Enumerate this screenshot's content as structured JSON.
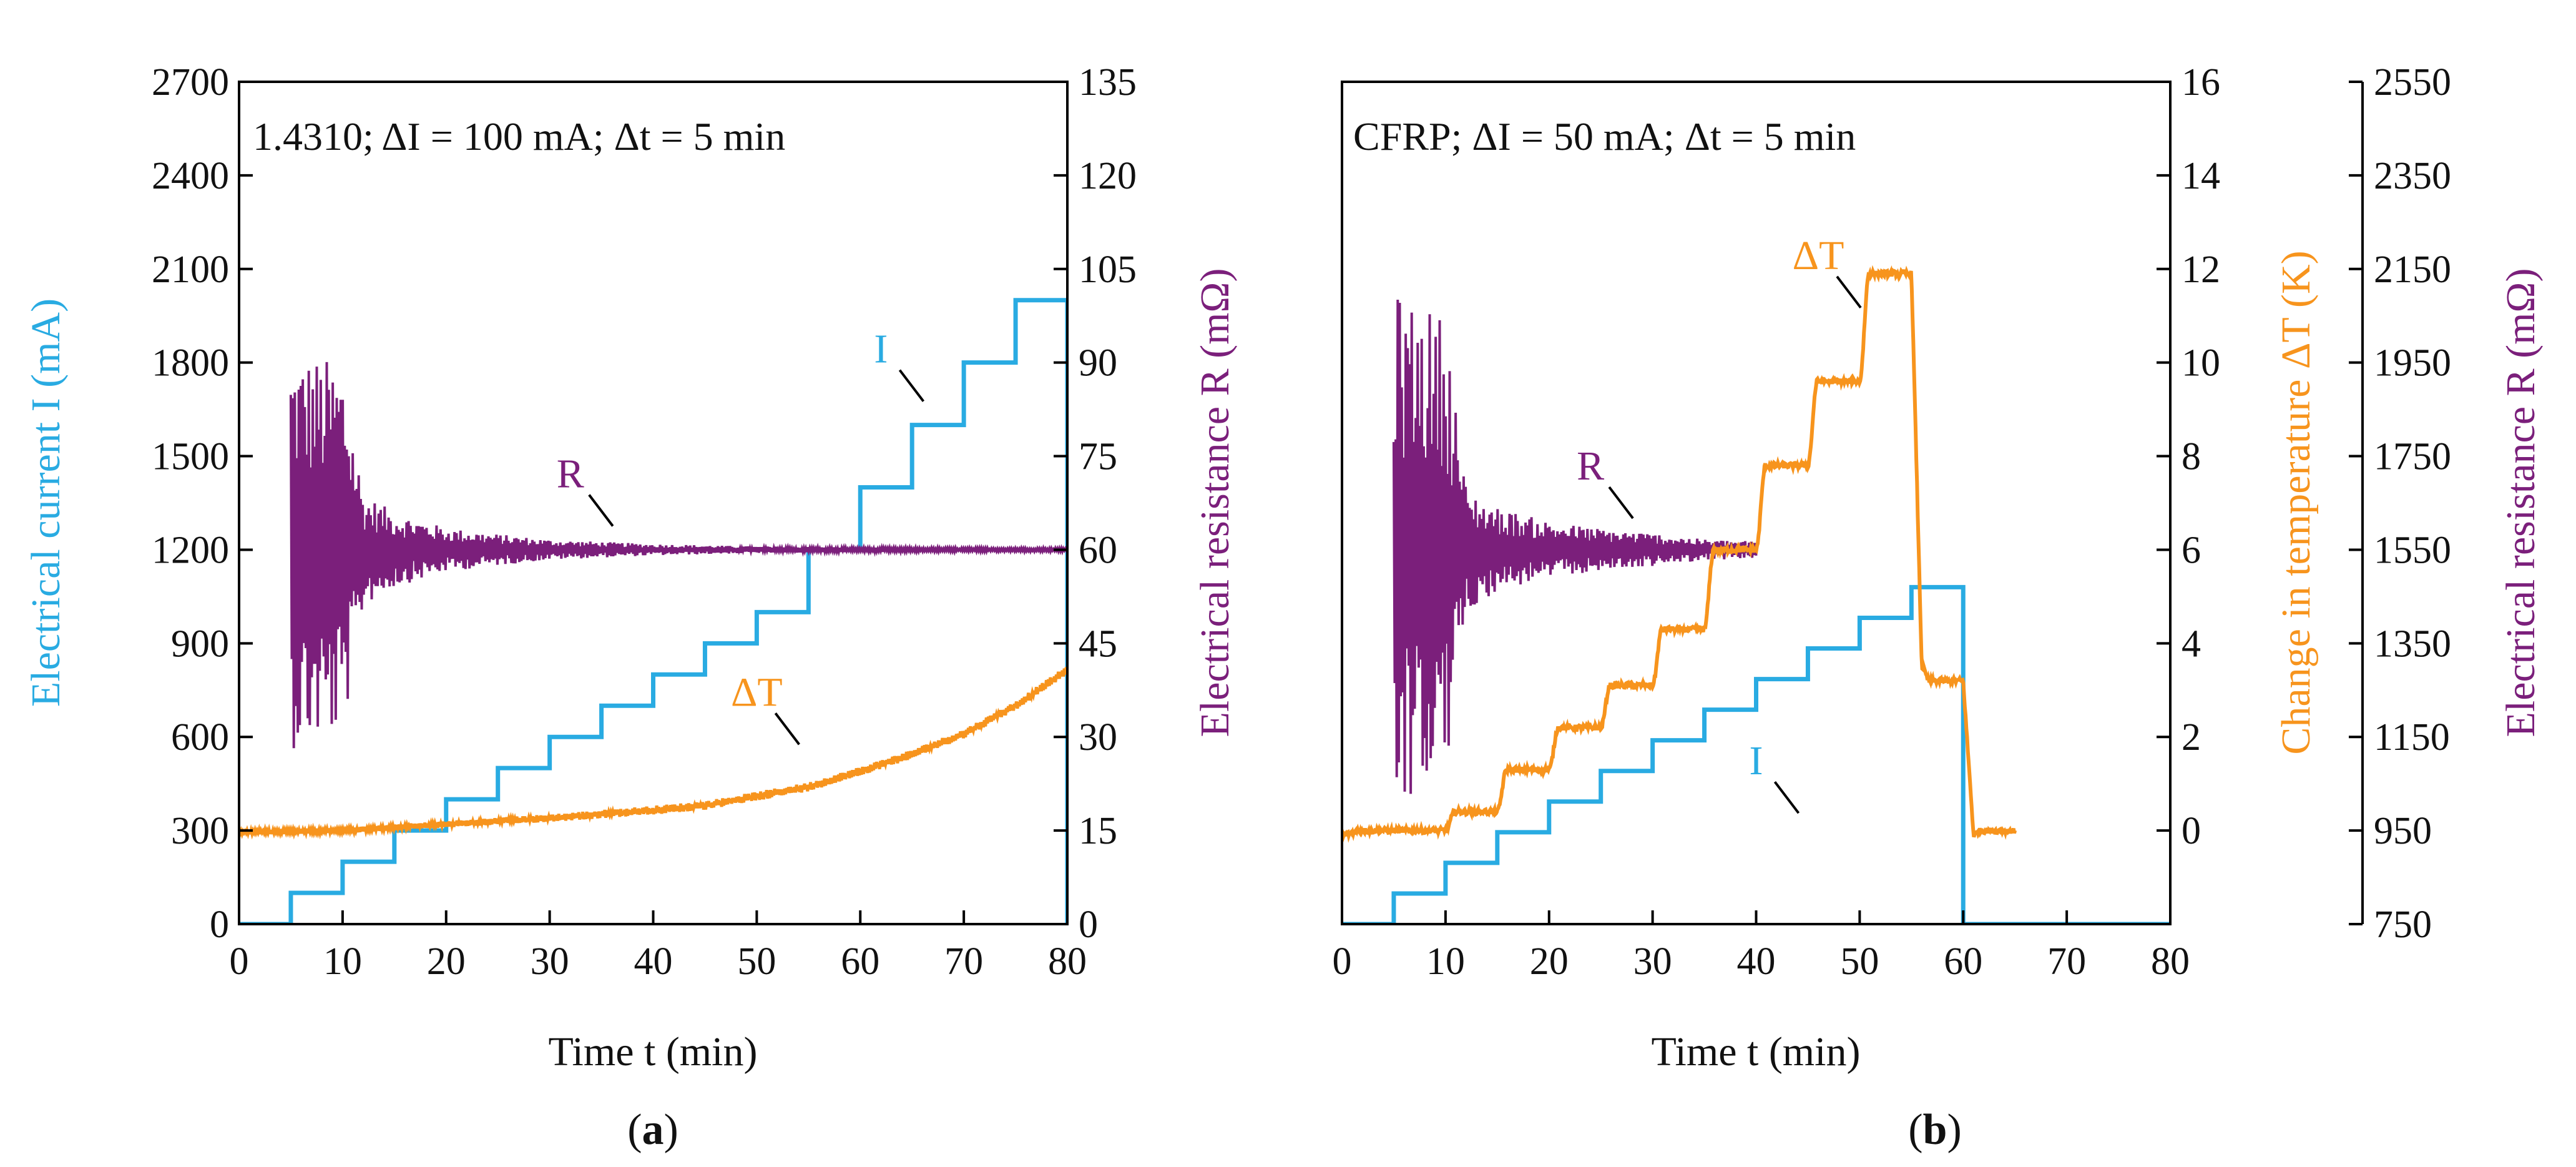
{
  "panels_label": [
    "a",
    "b"
  ],
  "chart_data": [
    {
      "type": "line",
      "panel": "a",
      "title": "1.4310; ΔI = 100 mA; Δt = 5 min",
      "xlabel": "Time t (min)",
      "xlim": [
        0,
        80
      ],
      "xticks": [
        0,
        10,
        20,
        30,
        40,
        50,
        60,
        70,
        80
      ],
      "y_left": {
        "label": "Electrical current I (mA)",
        "lim": [
          0,
          2700
        ],
        "ticks": [
          0,
          300,
          600,
          900,
          1200,
          1500,
          1800,
          2100,
          2400,
          2700
        ],
        "color": "#29abe2"
      },
      "y_right": {
        "label": "Electrical resistance R (mΩ)",
        "lim": [
          0,
          135
        ],
        "ticks": [
          0,
          15,
          30,
          45,
          60,
          75,
          90,
          105,
          120,
          135
        ],
        "color": "#7b1f7b"
      },
      "series": [
        {
          "name": "I",
          "axis": "left",
          "color": "#29abe2",
          "style": "step",
          "x": [
            0,
            5,
            10,
            15,
            20,
            25,
            30,
            35,
            40,
            45,
            50,
            55,
            60,
            65,
            70,
            75,
            80
          ],
          "y": [
            0,
            100,
            200,
            300,
            400,
            500,
            600,
            700,
            800,
            900,
            1000,
            1200,
            1400,
            1600,
            1800,
            2000,
            0
          ]
        },
        {
          "name": "R",
          "axis": "right",
          "color": "#7b1f7b",
          "style": "noisy",
          "x": [
            5,
            10,
            12,
            15,
            20,
            25,
            30,
            40,
            50,
            60,
            70,
            80
          ],
          "y": [
            60,
            60,
            60,
            60,
            60,
            60,
            60,
            60,
            60,
            60,
            60,
            60
          ],
          "amplitude": [
            32,
            30,
            9,
            6,
            3.5,
            2.5,
            1.6,
            0.9,
            0.5,
            0.35,
            0.3,
            0.3
          ]
        },
        {
          "name": "ΔT",
          "axis": "left",
          "color": "#f7941d",
          "style": "noisy",
          "x": [
            0,
            10,
            20,
            30,
            40,
            45,
            50,
            55,
            60,
            65,
            70,
            75,
            80
          ],
          "y": [
            295,
            300,
            320,
            340,
            365,
            380,
            410,
            440,
            490,
            545,
            610,
            700,
            815
          ],
          "amplitude": [
            8,
            8,
            10,
            12,
            14,
            14,
            14,
            14,
            14,
            14,
            14,
            14,
            14
          ]
        }
      ],
      "annotations": [
        {
          "text": "I",
          "color": "#29abe2",
          "x": 62,
          "y": 1800
        },
        {
          "text": "R",
          "color": "#7b1f7b",
          "x": 32,
          "y": 1400
        },
        {
          "text": "ΔT",
          "color": "#f7941d",
          "x": 50,
          "y": 700
        }
      ]
    },
    {
      "type": "line",
      "panel": "b",
      "title": "CFRP; ΔI = 50 mA; Δt = 5 min",
      "xlabel": "Time t (min)",
      "xlim": [
        0,
        80
      ],
      "xticks": [
        0,
        10,
        20,
        30,
        40,
        50,
        60,
        70,
        80
      ],
      "y_temp": {
        "label": "Change in temperature ΔT (K)",
        "lim": [
          -2,
          16
        ],
        "ticks": [
          0,
          2,
          4,
          6,
          8,
          10,
          12,
          14,
          16
        ],
        "color": "#f7941d"
      },
      "y_right": {
        "label": "Electrical resistance R (mΩ)",
        "lim": [
          750,
          2550
        ],
        "ticks": [
          750,
          950,
          1150,
          1350,
          1550,
          1750,
          1950,
          2150,
          2350,
          2550
        ],
        "color": "#7b1f7b"
      },
      "series": [
        {
          "name": "I",
          "axis": "hidden",
          "color": "#29abe2",
          "style": "step",
          "x": [
            0,
            5,
            10,
            15,
            20,
            25,
            30,
            35,
            40,
            45,
            50,
            55,
            60
          ],
          "y": [
            0,
            50,
            100,
            150,
            200,
            250,
            300,
            350,
            400,
            450,
            500,
            550,
            0
          ],
          "lim": [
            0,
            1375
          ]
        },
        {
          "name": "R",
          "axis": "right",
          "color": "#7b1f7b",
          "style": "noisy",
          "x": [
            5,
            10,
            12,
            15,
            20,
            25,
            30,
            35,
            40
          ],
          "y": [
            1550,
            1550,
            1550,
            1550,
            1550,
            1550,
            1550,
            1550,
            1550
          ],
          "amplitude": [
            550,
            500,
            130,
            90,
            60,
            45,
            35,
            22,
            18
          ]
        },
        {
          "name": "ΔT",
          "axis": "temp",
          "color": "#f7941d",
          "style": "stairs",
          "x": [
            0,
            10,
            15,
            20,
            25,
            30,
            35,
            40,
            45,
            50,
            55,
            56,
            60,
            61,
            65
          ],
          "y": [
            -0.1,
            0.0,
            0.4,
            1.3,
            2.2,
            3.1,
            4.3,
            6.0,
            7.8,
            9.6,
            11.9,
            3.5,
            3.2,
            -0.1,
            0.0
          ]
        }
      ],
      "annotations": [
        {
          "text": "I",
          "color": "#29abe2",
          "x": 40,
          "y": 1.2
        },
        {
          "text": "R",
          "color": "#7b1f7b",
          "x": 24,
          "y": 7.5
        },
        {
          "text": "ΔT",
          "color": "#f7941d",
          "x": 46,
          "y": 12
        }
      ]
    }
  ]
}
